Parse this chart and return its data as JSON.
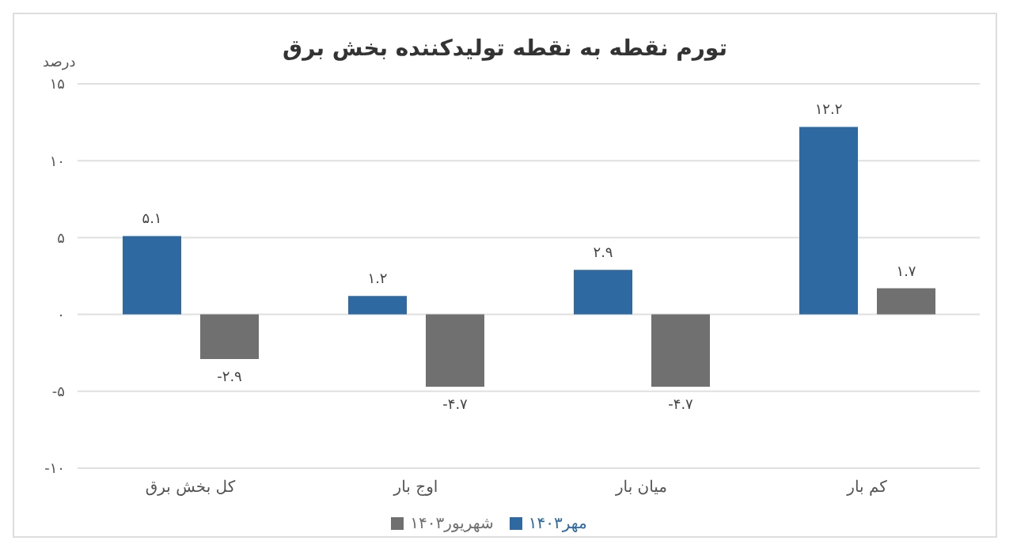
{
  "chart_data": {
    "type": "bar",
    "title": "تورم نقطه به نقطه تولیدکننده بخش برق",
    "ylabel": "درصد",
    "categories": [
      "کل بخش برق",
      "اوج بار",
      "میان بار",
      "کم بار"
    ],
    "series": [
      {
        "name": "مهر۱۴۰۳",
        "color": "#2e6aa1",
        "values": [
          5.1,
          1.2,
          2.9,
          12.2
        ],
        "value_labels": [
          "۵.۱",
          "۱.۲",
          "۲.۹",
          "۱۲.۲"
        ]
      },
      {
        "name": "شهریور۱۴۰۳",
        "color": "#707070",
        "values": [
          -2.9,
          -4.7,
          -4.7,
          1.7
        ],
        "value_labels": [
          "-۲.۹",
          "-۴.۷",
          "-۴.۷",
          "۱.۷"
        ]
      }
    ],
    "ylim": [
      -10,
      15
    ],
    "yticks": [
      {
        "value": -10,
        "label": "-۱۰"
      },
      {
        "value": -5,
        "label": "-۵"
      },
      {
        "value": 0,
        "label": "۰"
      },
      {
        "value": 5,
        "label": "۵"
      },
      {
        "value": 10,
        "label": "۱۰"
      },
      {
        "value": 15,
        "label": "۱۵"
      }
    ],
    "grid": "y",
    "legend": "bottom"
  }
}
